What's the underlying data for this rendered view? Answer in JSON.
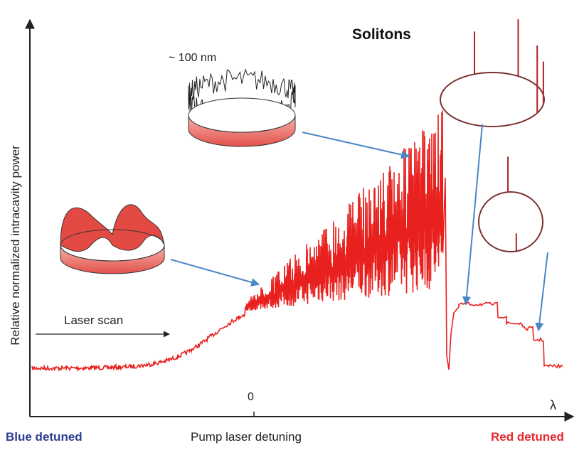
{
  "title": "Solitons",
  "annotations": {
    "bandwidth": "~ 100 nm",
    "scan": "Laser scan"
  },
  "axes": {
    "y_label": "Relative normalized intracavity power",
    "x_label": "Pump laser detuning",
    "x_zero": "0",
    "x_symbol": "λ",
    "left": "Blue detuned",
    "right": "Red detuned"
  }
}
